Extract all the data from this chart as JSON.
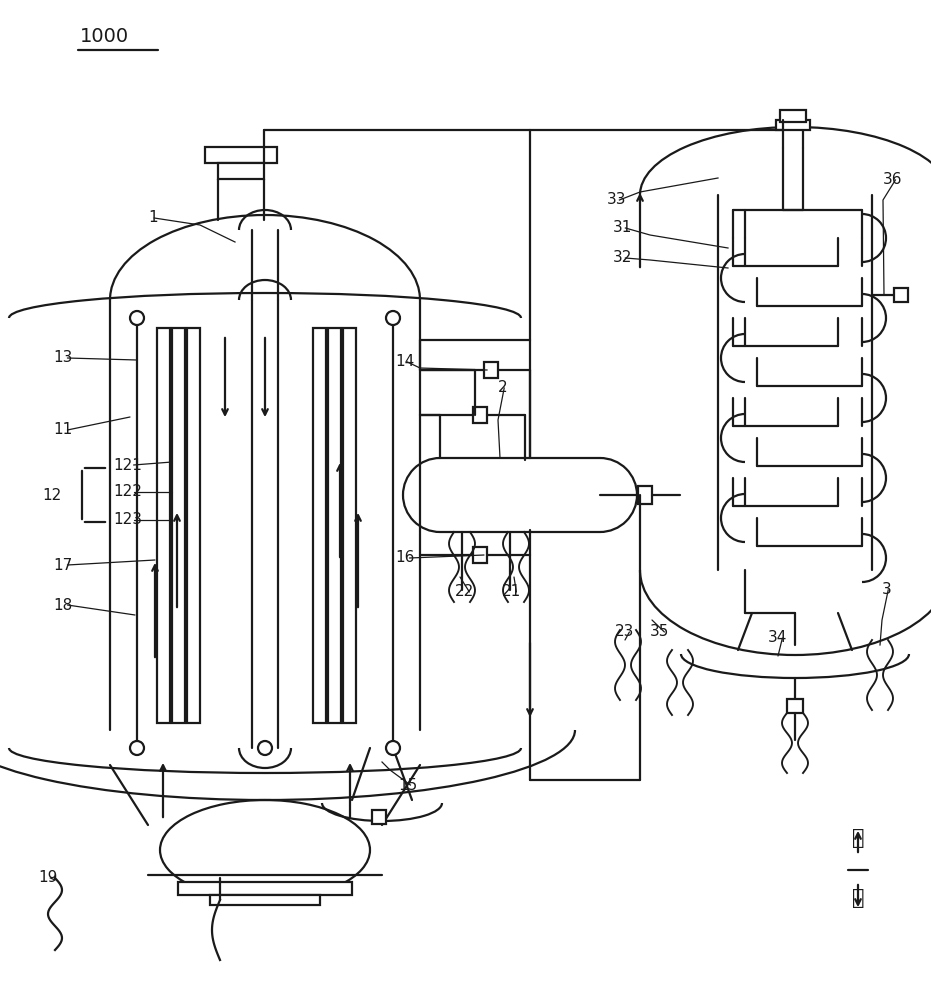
{
  "bg": "#ffffff",
  "lc": "#1a1a1a",
  "lw": 1.6
}
